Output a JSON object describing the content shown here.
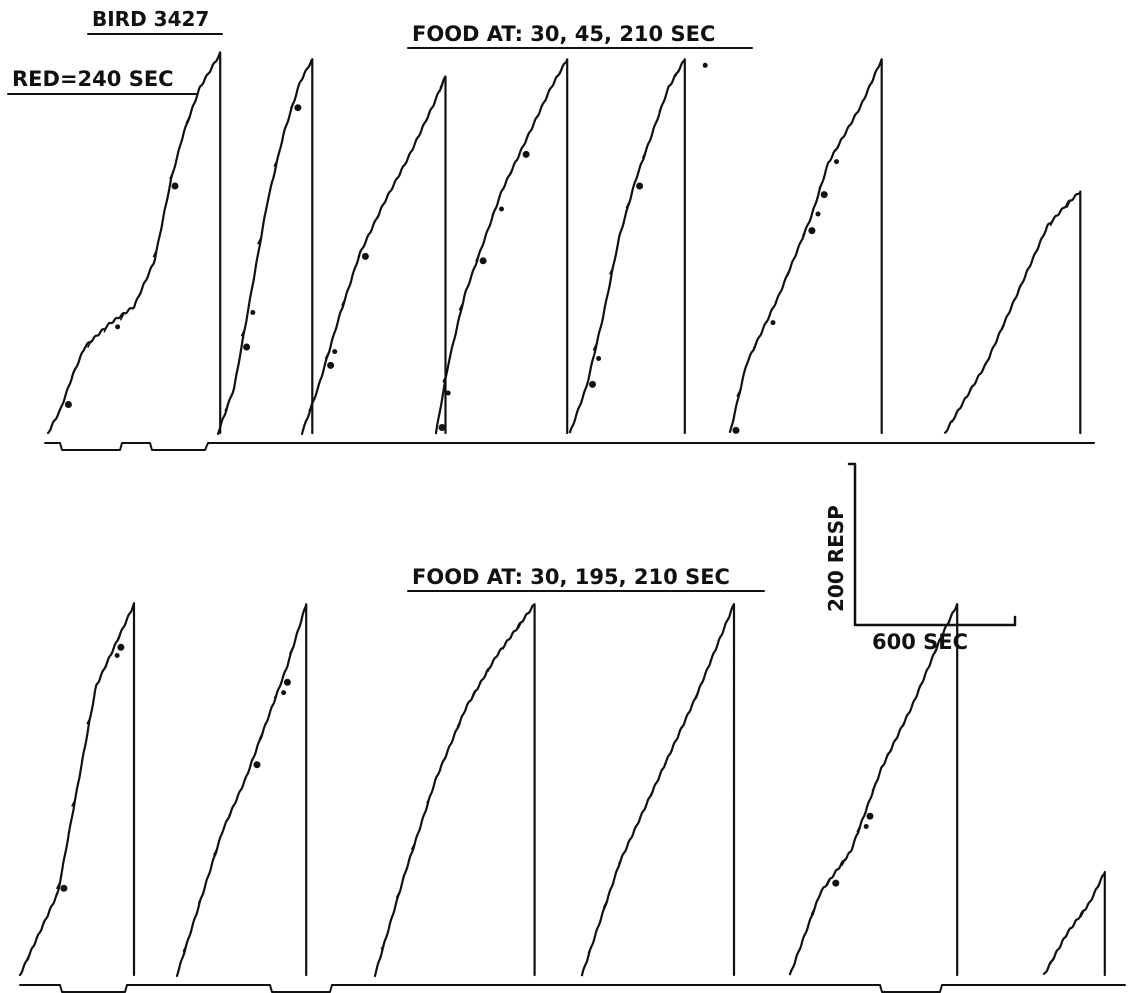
{
  "chart_data": {
    "type": "line",
    "subtype": "cumulative-record",
    "labels": {
      "bird": "BIRD 3427",
      "red": "RED=240 SEC",
      "food_top": "FOOD AT: 30, 45, 210 SEC",
      "food_bottom": "FOOD AT: 30, 195, 210 SEC"
    },
    "scale": {
      "response_label": "200 RESP",
      "time_label": "600 SEC",
      "response_units": 200,
      "time_units_sec": 600
    },
    "colors": {
      "ink": "#111111",
      "paper": "#ffffff"
    },
    "panels": [
      {
        "name": "top",
        "segments": [
          {
            "points": [
              [
                0,
                0
              ],
              [
                30,
                20
              ],
              [
                60,
                50
              ],
              [
                90,
                75
              ],
              [
                150,
                95
              ],
              [
                210,
                110
              ],
              [
                260,
                150
              ],
              [
                300,
                220
              ],
              [
                330,
                260
              ],
              [
                370,
                300
              ],
              [
                420,
                330
              ]
            ],
            "dots": [
              40,
              160,
              300
            ]
          },
          {
            "points": [
              [
                0,
                0
              ],
              [
                40,
                40
              ],
              [
                80,
                120
              ],
              [
                120,
                200
              ],
              [
                160,
                260
              ],
              [
                200,
                305
              ],
              [
                230,
                325
              ]
            ],
            "dots": [
              60,
              75,
              185
            ]
          },
          {
            "points": [
              [
                0,
                0
              ],
              [
                40,
                40
              ],
              [
                90,
                100
              ],
              [
                140,
                155
              ],
              [
                200,
                200
              ],
              [
                260,
                240
              ],
              [
                320,
                285
              ],
              [
                350,
                310
              ]
            ],
            "dots": [
              60,
              70,
              145
            ]
          },
          {
            "points": [
              [
                0,
                0
              ],
              [
                30,
                60
              ],
              [
                70,
                120
              ],
              [
                120,
                170
              ],
              [
                160,
                210
              ],
              [
                200,
                240
              ],
              [
                240,
                270
              ],
              [
                280,
                300
              ],
              [
                320,
                325
              ]
            ],
            "dots": [
              5,
              20,
              105,
              150,
              210
            ]
          },
          {
            "points": [
              [
                0,
                0
              ],
              [
                40,
                40
              ],
              [
                80,
                100
              ],
              [
                120,
                170
              ],
              [
                160,
                220
              ],
              [
                200,
                260
              ],
              [
                240,
                300
              ],
              [
                280,
                325
              ]
            ],
            "dots": [
              45,
              60,
              160,
              320
            ]
          },
          {
            "points": [
              [
                0,
                0
              ],
              [
                40,
                60
              ],
              [
                80,
                90
              ],
              [
                120,
                120
              ],
              [
                160,
                155
              ],
              [
                200,
                190
              ],
              [
                240,
                235
              ],
              [
                280,
                260
              ],
              [
                320,
                285
              ],
              [
                370,
                325
              ]
            ],
            "dots": [
              5,
              95,
              190,
              205,
              220,
              250
            ]
          },
          {
            "points": [
              [
                0,
                0
              ],
              [
                50,
                30
              ],
              [
                100,
                60
              ],
              [
                150,
                100
              ],
              [
                200,
                140
              ],
              [
                250,
                180
              ],
              [
                300,
                200
              ],
              [
                330,
                210
              ]
            ],
            "dots": []
          }
        ]
      },
      {
        "name": "bottom",
        "segments": [
          {
            "points": [
              [
                0,
                0
              ],
              [
                50,
                40
              ],
              [
                100,
                80
              ],
              [
                150,
                180
              ],
              [
                200,
                280
              ],
              [
                250,
                320
              ],
              [
                300,
                360
              ]
            ],
            "dots": [
              105,
              245,
              255
            ]
          },
          {
            "points": [
              [
                0,
                0
              ],
              [
                60,
                70
              ],
              [
                120,
                140
              ],
              [
                180,
                190
              ],
              [
                240,
                250
              ],
              [
                290,
                300
              ],
              [
                340,
                360
              ]
            ],
            "dots": [
              200,
              270,
              280
            ]
          },
          {
            "points": [
              [
                0,
                0
              ],
              [
                80,
                100
              ],
              [
                160,
                190
              ],
              [
                240,
                260
              ],
              [
                320,
                310
              ],
              [
                380,
                340
              ],
              [
                420,
                360
              ]
            ],
            "dots": []
          },
          {
            "points": [
              [
                0,
                0
              ],
              [
                100,
                110
              ],
              [
                200,
                190
              ],
              [
                300,
                270
              ],
              [
                400,
                360
              ]
            ],
            "dots": []
          },
          {
            "points": [
              [
                0,
                0
              ],
              [
                80,
                80
              ],
              [
                160,
                120
              ],
              [
                240,
                200
              ],
              [
                320,
                260
              ],
              [
                400,
                330
              ],
              [
                440,
                360
              ]
            ],
            "dots": [
              110,
              190,
              200
            ]
          },
          {
            "points": [
              [
                0,
                0
              ],
              [
                60,
                40
              ],
              [
                120,
                70
              ],
              [
                160,
                100
              ]
            ],
            "dots": []
          }
        ]
      }
    ]
  }
}
